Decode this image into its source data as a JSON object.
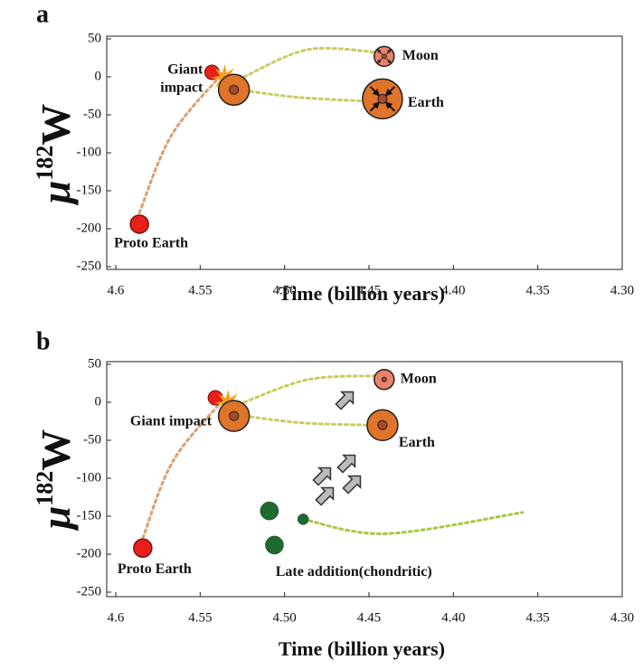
{
  "chart_data": [
    {
      "type": "scatter",
      "panel_label": "a",
      "xlabel": "Time (billion years)",
      "ylabel": [
        "μ",
        "182",
        "W"
      ],
      "xlim": [
        4.6,
        4.3
      ],
      "ylim": [
        -250,
        50
      ],
      "xticks": [
        4.6,
        4.55,
        {
          "value": 4.5,
          "label": "4.50"
        },
        4.45,
        {
          "value": 4.4,
          "label": "4.40"
        },
        4.35,
        {
          "value": 4.3,
          "label": "4.30"
        }
      ],
      "yticks": [
        50,
        0,
        -50,
        -100,
        -150,
        -200,
        -250
      ],
      "points": [
        {
          "label": [
            "Proto Earth"
          ],
          "x": 4.586,
          "y": -194,
          "color": "#e8201a"
        },
        {
          "label": [
            "Giant",
            "impact"
          ],
          "x": 4.543,
          "y": 6,
          "color": "#e8201a"
        },
        {
          "x": 4.53,
          "y": -17,
          "color": "#e0742a"
        },
        {
          "label": [
            "Moon"
          ],
          "x": 4.441,
          "y": 27,
          "color": "#e8826b"
        },
        {
          "label": [
            "Earth"
          ],
          "x": 4.442,
          "y": -29,
          "color": "#e0742a"
        }
      ],
      "curves": [
        {
          "color": "#d9a070",
          "x": [
            4.586,
            4.567,
            4.537
          ],
          "y": [
            -179,
            -77,
            4
          ]
        },
        {
          "color": "#c8cc60",
          "x": [
            4.524,
            4.486,
            4.444
          ],
          "y": [
            0,
            36,
            32
          ]
        },
        {
          "color": "#c8cc60",
          "x": [
            4.524,
            4.492,
            4.452
          ],
          "y": [
            -18,
            -27,
            -32
          ]
        }
      ]
    },
    {
      "type": "scatter",
      "panel_label": "b",
      "xlabel": "Time (billion years)",
      "ylabel": [
        "μ",
        "182",
        "W"
      ],
      "xlim": [
        4.6,
        4.3
      ],
      "ylim": [
        -250,
        50
      ],
      "xticks": [
        4.6,
        4.55,
        {
          "value": 4.5,
          "label": "4.50"
        },
        4.45,
        {
          "value": 4.4,
          "label": "4.40"
        },
        4.35,
        {
          "value": 4.3,
          "label": "4.30"
        }
      ],
      "yticks": [
        50,
        0,
        -50,
        -100,
        -150,
        -200,
        -250
      ],
      "points": [
        {
          "label": [
            "Proto Earth"
          ],
          "x": 4.584,
          "y": -192,
          "color": "#e8201a"
        },
        {
          "label": [
            "Giant impact"
          ],
          "x": 4.541,
          "y": 6,
          "color": "#e8201a"
        },
        {
          "x": 4.53,
          "y": -18,
          "color": "#e0742a"
        },
        {
          "label": [
            "Moon"
          ],
          "x": 4.441,
          "y": 30,
          "color": "#e8826b"
        },
        {
          "label": [
            "Earth"
          ],
          "x": 4.442,
          "y": -30,
          "color": "#e0742a"
        },
        {
          "x": 4.509,
          "y": -143,
          "color": "#1e6b30"
        },
        {
          "x": 4.506,
          "y": -188,
          "color": "#1e6b30"
        },
        {
          "label": [
            "Late addition(chondritic)"
          ],
          "x": 4.489,
          "y": -154,
          "color": "#1e6b30"
        }
      ],
      "curves": [
        {
          "color": "#d9a070",
          "x": [
            4.584,
            4.566,
            4.536
          ],
          "y": [
            -179,
            -77,
            4
          ]
        },
        {
          "color": "#c8cc60",
          "x": [
            4.524,
            4.486,
            4.445
          ],
          "y": [
            0,
            30,
            35
          ]
        },
        {
          "color": "#c8cc60",
          "x": [
            4.524,
            4.49,
            4.452
          ],
          "y": [
            -18,
            -27,
            -30
          ]
        },
        {
          "color": "#a8c840",
          "x": [
            4.489,
            4.44,
            4.359
          ],
          "y": [
            -154,
            -173,
            -145
          ]
        }
      ]
    }
  ]
}
